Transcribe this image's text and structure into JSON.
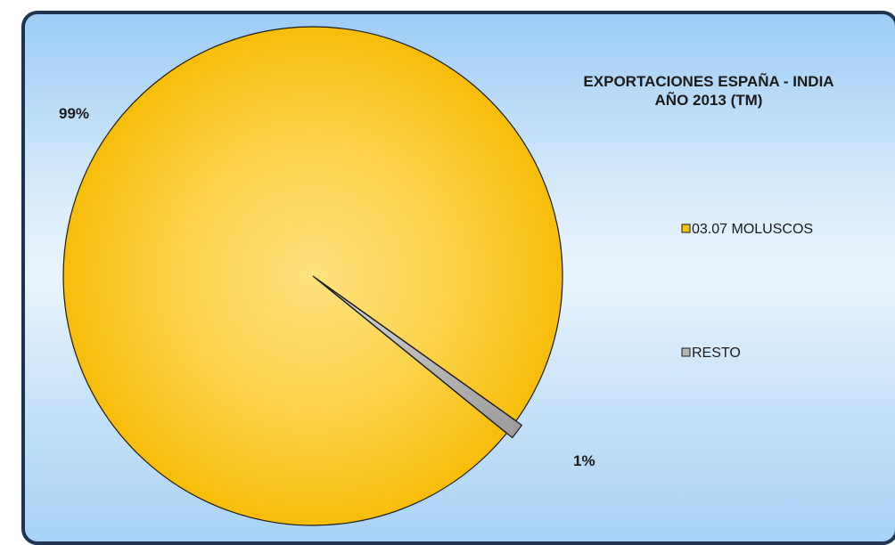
{
  "chart_data": {
    "type": "pie",
    "title_lines": [
      "EXPORTACIONES ESPAÑA -  INDIA",
      "AÑO 2013 (TM)"
    ],
    "slices": [
      {
        "name": "03.07 MOLUSCOS",
        "value": 99,
        "label": "99%",
        "color": "#f9c20e"
      },
      {
        "name": "RESTO",
        "value": 1,
        "label": "1%",
        "color": "#b5b5b5"
      }
    ],
    "legend": {
      "placement": "right"
    }
  },
  "colors": {
    "frame_border": "#1f3450",
    "background_top": "#9dccf6",
    "background_mid": "#e9f4fd",
    "slice_outline": "#1a1a1a"
  }
}
